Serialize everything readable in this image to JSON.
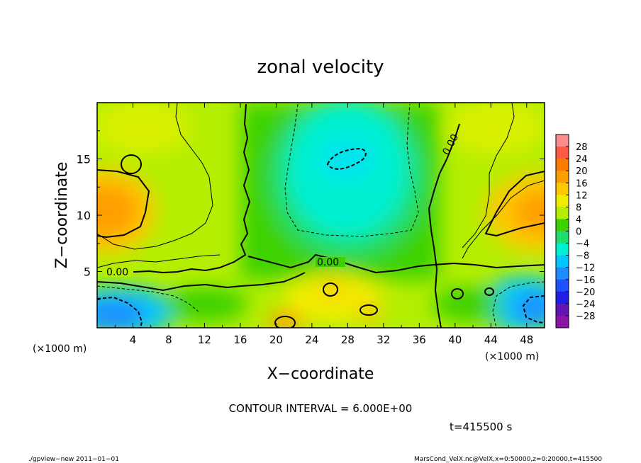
{
  "chart_data": {
    "type": "heatmap",
    "title": "zonal velocity",
    "xlabel": "X−coordinate",
    "ylabel": "Z−coordinate",
    "x_unit": "(×1000 m)",
    "y_unit": "(×1000 m)",
    "xlim": [
      0,
      50
    ],
    "ylim": [
      0,
      20
    ],
    "x_ticks": [
      4,
      8,
      12,
      16,
      20,
      24,
      28,
      32,
      36,
      40,
      44,
      48
    ],
    "y_ticks": [
      5,
      10,
      15
    ],
    "contour_interval_label": "CONTOUR INTERVAL = 6.000E+00",
    "contour_labels": [
      "0.00",
      "0.00",
      "0.00"
    ],
    "colorbar_ticks": [
      "28",
      "24",
      "20",
      "16",
      "12",
      "8",
      "4",
      "0",
      "−4",
      "−8",
      "−12",
      "−16",
      "−20",
      "−24",
      "−28"
    ],
    "colorbar_colors": [
      "#ff8c8c",
      "#ff5a46",
      "#ff7a00",
      "#ff9e00",
      "#ffc800",
      "#f0ee00",
      "#b4ee00",
      "#3cd200",
      "#1ede6e",
      "#00f0d2",
      "#00c8ff",
      "#1e8cff",
      "#1e50ff",
      "#1e1ee6",
      "#6414b4",
      "#8c14aa"
    ],
    "time_label": "t=415500 s",
    "footer_left": "./gpview−new   2011−01−01",
    "footer_right": "MarsCond_VelX.nc@VelX,x=0:50000,z=0:20000,t=415500"
  }
}
